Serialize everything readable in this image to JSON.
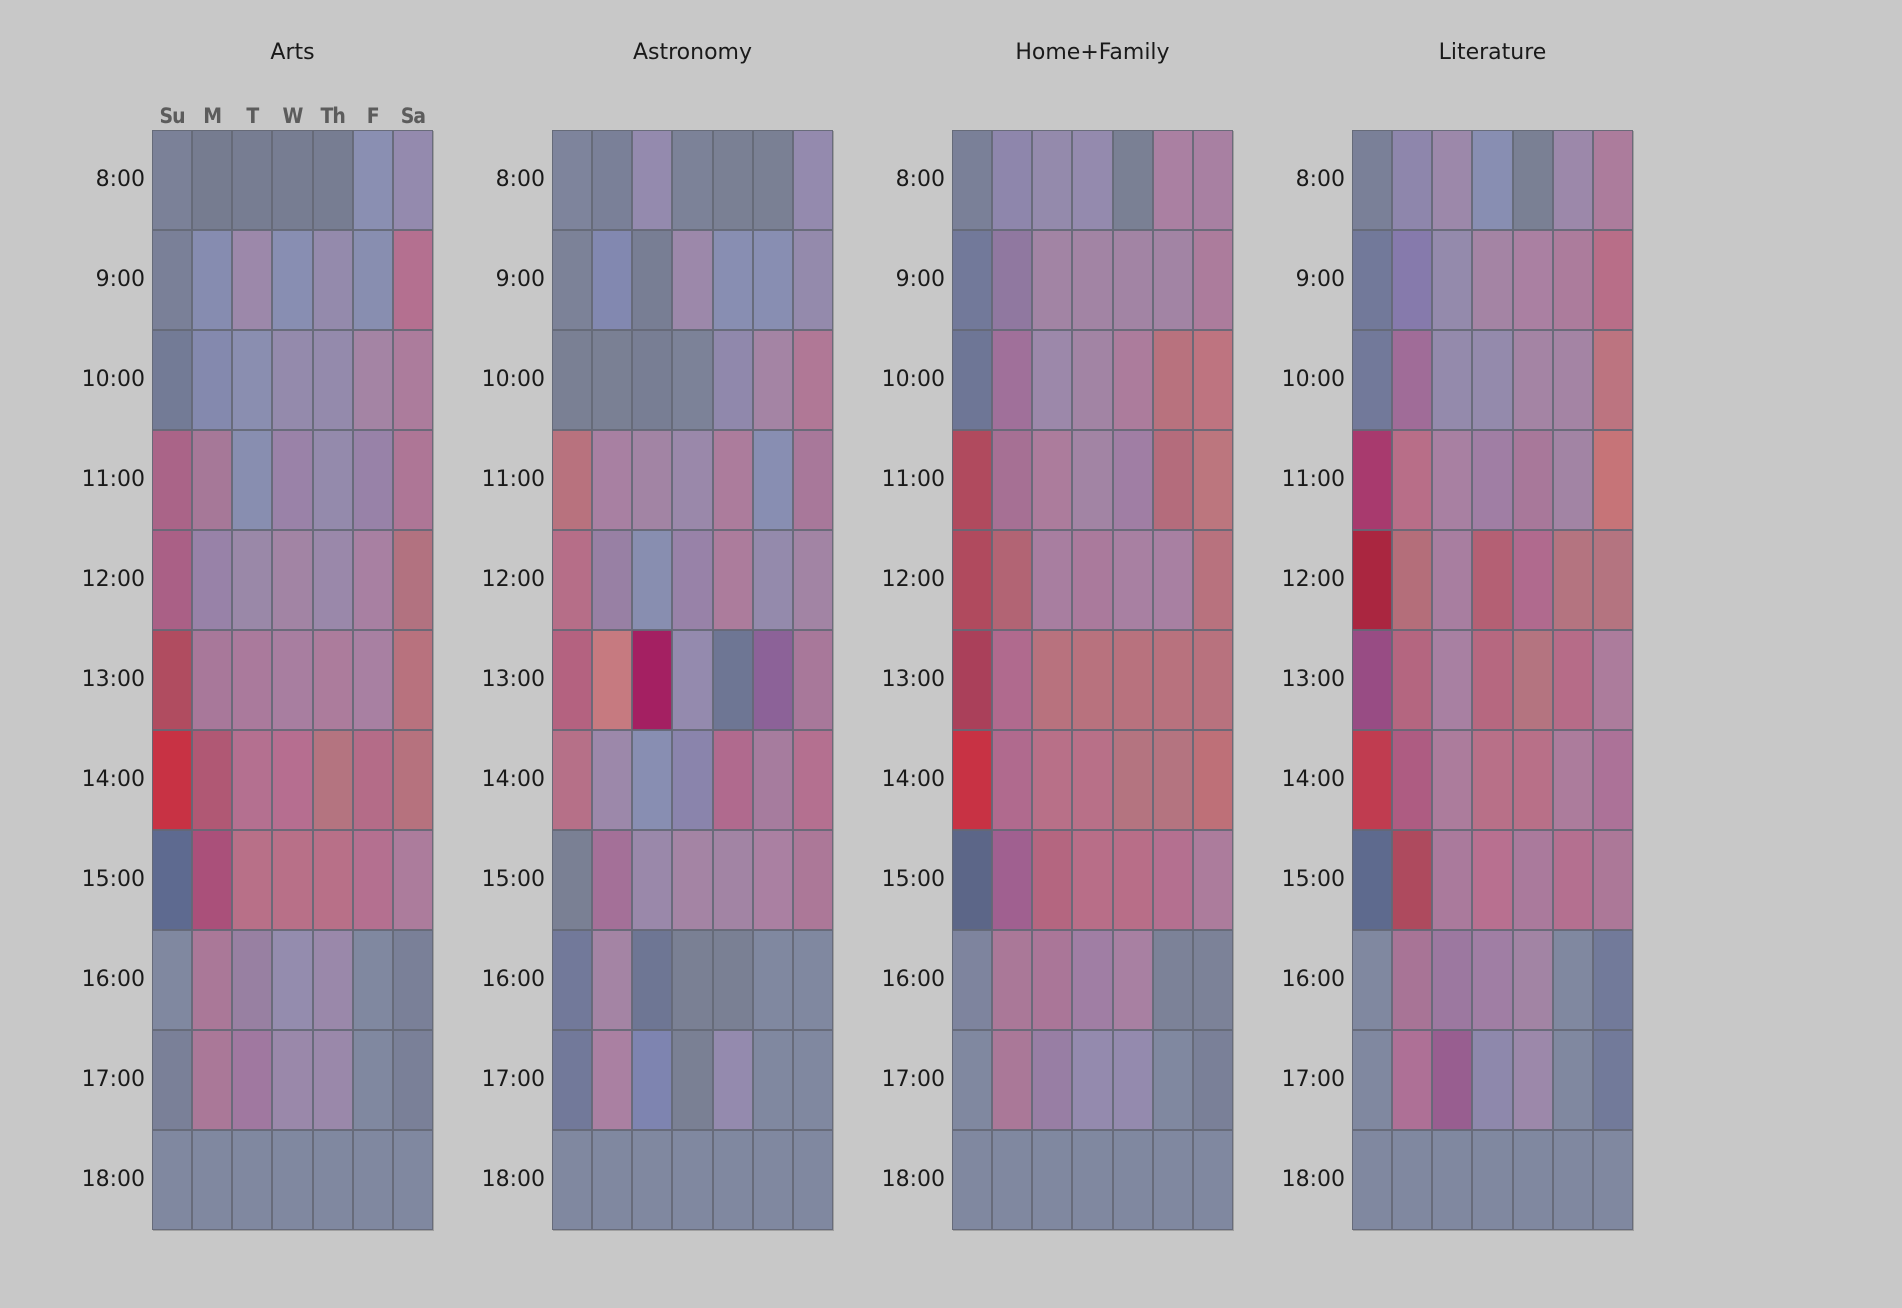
{
  "chart_data": {
    "type": "heatmap",
    "title": "",
    "layout": "small-multiples",
    "days": [
      "Su",
      "M",
      "T",
      "W",
      "Th",
      "F",
      "Sa"
    ],
    "hours": [
      "8:00",
      "9:00",
      "10:00",
      "11:00",
      "12:00",
      "13:00",
      "14:00",
      "15:00",
      "16:00",
      "17:00",
      "18:00"
    ],
    "color_scale": {
      "low": "#5c6688",
      "mid": "#a284a4",
      "high": "#c83244"
    },
    "panels": [
      {
        "name": "Arts",
        "show_day_labels": true,
        "cells": [
          [
            "#7b8198",
            "#767c90",
            "#777d92",
            "#777d92",
            "#777d92",
            "#8a8fb2",
            "#948aae"
          ],
          [
            "#7a8098",
            "#868cb0",
            "#9c88aa",
            "#888eb2",
            "#948aac",
            "#888eb0",
            "#b47090"
          ],
          [
            "#737b96",
            "#8489ae",
            "#8a8eb0",
            "#948aac",
            "#948aac",
            "#a484a4",
            "#ac7c9c"
          ],
          [
            "#aa6488",
            "#a67898",
            "#888eb0",
            "#9a82a8",
            "#948aac",
            "#9882a8",
            "#ae7696"
          ],
          [
            "#aa6086",
            "#9882a8",
            "#9a88a8",
            "#a284a4",
            "#9a88aa",
            "#a880a2",
            "#b27280"
          ],
          [
            "#b04c60",
            "#a8789a",
            "#aa7a9c",
            "#a87ea0",
            "#ac7c9c",
            "#a880a2",
            "#b8727e"
          ],
          [
            "#c83244",
            "#b05874",
            "#b47090",
            "#b66e90",
            "#b47480",
            "#b46c88",
            "#b6727e"
          ],
          [
            "#5e6a90",
            "#aa507a",
            "#b87088",
            "#b87088",
            "#b87088",
            "#b47090",
            "#ac7c9c"
          ],
          [
            "#8088a0",
            "#aa7898",
            "#9880a2",
            "#948cae",
            "#9a88aa",
            "#8088a0",
            "#7a8098"
          ],
          [
            "#7a8098",
            "#aa7898",
            "#a078a0",
            "#9a88aa",
            "#9a88aa",
            "#8088a0",
            "#7a8098"
          ],
          [
            "#8088a0",
            "#8088a0",
            "#8088a0",
            "#8088a0",
            "#8088a0",
            "#8088a0",
            "#8088a0"
          ]
        ]
      },
      {
        "name": "Astronomy",
        "show_day_labels": false,
        "cells": [
          [
            "#7e849c",
            "#7a8098",
            "#948aae",
            "#7c8298",
            "#7a8094",
            "#7a8094",
            "#948aae"
          ],
          [
            "#7c8298",
            "#8288b0",
            "#787e94",
            "#9c88aa",
            "#888eb2",
            "#888eb2",
            "#948aac"
          ],
          [
            "#7a8094",
            "#7a8094",
            "#787e94",
            "#7c8298",
            "#9088ac",
            "#a484a4",
            "#b07896"
          ],
          [
            "#b8727e",
            "#a880a2",
            "#a284a4",
            "#9a88aa",
            "#ac7c9c",
            "#888eb2",
            "#a8789a"
          ],
          [
            "#b66e88",
            "#9880a4",
            "#888eb0",
            "#9882a8",
            "#ac7c9c",
            "#948aac",
            "#a284a4"
          ],
          [
            "#b46280",
            "#c67a80",
            "#a42062",
            "#948aae",
            "#6e7694",
            "#8c6298",
            "#a8789a"
          ],
          [
            "#b67088",
            "#9c88aa",
            "#888eb2",
            "#8a84ac",
            "#b06a8e",
            "#a67c9e",
            "#b47090"
          ],
          [
            "#7a8094",
            "#a47098",
            "#9a88aa",
            "#a484a4",
            "#a284a4",
            "#aa80a2",
            "#ac7898"
          ],
          [
            "#72799a",
            "#a484a4",
            "#6e7694",
            "#7a8094",
            "#7a8094",
            "#8088a0",
            "#8088a0"
          ],
          [
            "#72799a",
            "#aa80a2",
            "#7e84b0",
            "#7a8094",
            "#948aae",
            "#8088a0",
            "#8088a0"
          ],
          [
            "#8088a0",
            "#8088a0",
            "#8088a0",
            "#8088a0",
            "#8088a0",
            "#8088a0",
            "#8088a0"
          ]
        ]
      },
      {
        "name": "Home+Family",
        "show_day_labels": false,
        "cells": [
          [
            "#7a8098",
            "#8e86ac",
            "#948aac",
            "#948aae",
            "#7a8094",
            "#aa80a2",
            "#a880a2"
          ],
          [
            "#72799a",
            "#9078a0",
            "#a284a4",
            "#a284a4",
            "#a284a4",
            "#a284a4",
            "#ac7c9c"
          ],
          [
            "#6e7696",
            "#a0709a",
            "#9c88aa",
            "#a284a4",
            "#ac7c9c",
            "#b8727e",
            "#be7480"
          ],
          [
            "#b04a5e",
            "#a67094",
            "#ac7c9c",
            "#a284a4",
            "#a07ea4",
            "#b46c7c",
            "#bc767e"
          ],
          [
            "#b04a5e",
            "#b26474",
            "#a87ea0",
            "#aa7a9c",
            "#a880a2",
            "#a880a2",
            "#b8727e"
          ],
          [
            "#aa405a",
            "#b06a8e",
            "#b8727e",
            "#b8727e",
            "#b8727e",
            "#b8727e",
            "#b8727e"
          ],
          [
            "#c83244",
            "#b06a8e",
            "#b87088",
            "#b87088",
            "#b47480",
            "#b47480",
            "#be7078"
          ],
          [
            "#5c6688",
            "#a06090",
            "#b46680",
            "#b86e88",
            "#b86e88",
            "#b47090",
            "#ac7c9c"
          ],
          [
            "#7e849e",
            "#aa7898",
            "#aa7698",
            "#a07ea4",
            "#a880a2",
            "#7c8298",
            "#7c8298"
          ],
          [
            "#8088a0",
            "#aa7898",
            "#987ea4",
            "#948aae",
            "#948aae",
            "#8088a0",
            "#7a8098"
          ],
          [
            "#8088a0",
            "#8088a0",
            "#8088a0",
            "#8088a0",
            "#8088a0",
            "#8088a0",
            "#8088a0"
          ]
        ]
      },
      {
        "name": "Literature",
        "show_day_labels": false,
        "cells": [
          [
            "#7a8098",
            "#8e86ac",
            "#9c88aa",
            "#888eb2",
            "#7a8094",
            "#9c88aa",
            "#ac7c9c"
          ],
          [
            "#72799a",
            "#867aac",
            "#948aac",
            "#a484a4",
            "#aa80a2",
            "#ac7c9c",
            "#b86e88"
          ],
          [
            "#72799a",
            "#a06c98",
            "#948aac",
            "#948aac",
            "#a484a4",
            "#a484a4",
            "#bc7480"
          ],
          [
            "#a83a6e",
            "#b86e88",
            "#a880a2",
            "#a07ea4",
            "#a8789a",
            "#a284a4",
            "#c67478"
          ],
          [
            "#aa2640",
            "#b46e7a",
            "#a87ea0",
            "#b46074",
            "#b06a8e",
            "#b47480",
            "#b47480"
          ],
          [
            "#984c84",
            "#b46680",
            "#a880a2",
            "#b66880",
            "#b47480",
            "#b66c88",
            "#ac7c9c"
          ],
          [
            "#c03c50",
            "#ae5c82",
            "#ac7c9c",
            "#b87088",
            "#b87088",
            "#ac7c9c",
            "#ac7298"
          ],
          [
            "#5e6a8e",
            "#ae4a5e",
            "#aa7a9c",
            "#b87090",
            "#aa7a9c",
            "#b47090",
            "#ac7898"
          ],
          [
            "#8088a0",
            "#a87496",
            "#9c78a0",
            "#a07ea4",
            "#a284a4",
            "#8088a0",
            "#727a9a"
          ],
          [
            "#8088a0",
            "#ae7096",
            "#985e90",
            "#8e88ac",
            "#9c88aa",
            "#8088a0",
            "#727a9a"
          ],
          [
            "#8088a0",
            "#8088a0",
            "#8088a0",
            "#8088a0",
            "#8088a0",
            "#8088a0",
            "#8088a0"
          ]
        ]
      }
    ]
  }
}
